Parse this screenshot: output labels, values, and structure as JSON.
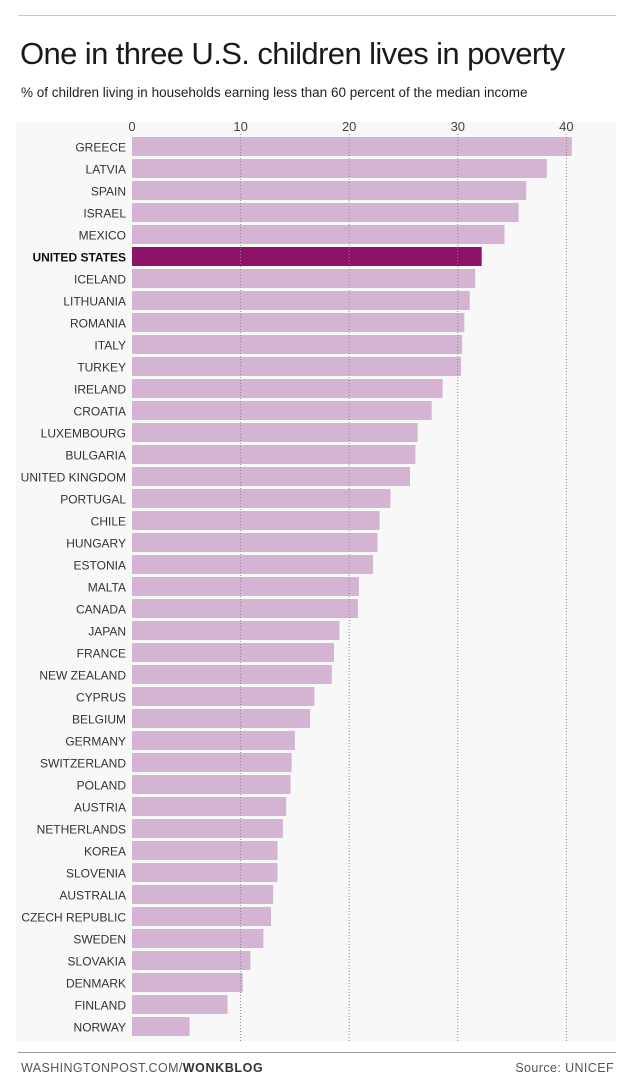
{
  "header": {
    "title": "One in three U.S. children lives in poverty",
    "subtitle": "% of children living in households earning less than 60 percent of the median income"
  },
  "footer": {
    "site": "WASHINGTONPOST.COM/",
    "section": "WONKBLOG",
    "source": "Source: UNICEF"
  },
  "colors": {
    "bar": "#d4b4d2",
    "highlight": "#8e1268",
    "plot_background": "#f9f8f9",
    "gridline": "#8a8a8a"
  },
  "chart_data": {
    "type": "bar",
    "orientation": "horizontal",
    "title": "One in three U.S. children lives in poverty",
    "subtitle": "% of children living in households earning less than 60 percent of the median income",
    "xlim": [
      0,
      40.7
    ],
    "xticks": [
      0,
      10,
      20,
      30,
      40
    ],
    "grid": true,
    "highlight": "UNITED STATES",
    "categories": [
      "GREECE",
      "LATVIA",
      "SPAIN",
      "ISRAEL",
      "MEXICO",
      "UNITED STATES",
      "ICELAND",
      "LITHUANIA",
      "ROMANIA",
      "ITALY",
      "TURKEY",
      "IRELAND",
      "CROATIA",
      "LUXEMBOURG",
      "BULGARIA",
      "UNITED KINGDOM",
      "PORTUGAL",
      "CHILE",
      "HUNGARY",
      "ESTONIA",
      "MALTA",
      "CANADA",
      "JAPAN",
      "FRANCE",
      "NEW ZEALAND",
      "CYPRUS",
      "BELGIUM",
      "GERMANY",
      "SWITZERLAND",
      "POLAND",
      "AUSTRIA",
      "NETHERLANDS",
      "KOREA",
      "SLOVENIA",
      "AUSTRALIA",
      "CZECH REPUBLIC",
      "SWEDEN",
      "SLOVAKIA",
      "DENMARK",
      "FINLAND",
      "NORWAY"
    ],
    "values": [
      40.5,
      38.2,
      36.3,
      35.6,
      34.3,
      32.2,
      31.6,
      31.1,
      30.6,
      30.4,
      30.3,
      28.6,
      27.6,
      26.3,
      26.1,
      25.6,
      23.8,
      22.8,
      22.6,
      22.2,
      20.9,
      20.8,
      19.1,
      18.6,
      18.4,
      16.8,
      16.4,
      15.0,
      14.7,
      14.6,
      14.2,
      13.9,
      13.4,
      13.4,
      13.0,
      12.8,
      12.1,
      10.9,
      10.2,
      8.8,
      5.3
    ]
  }
}
